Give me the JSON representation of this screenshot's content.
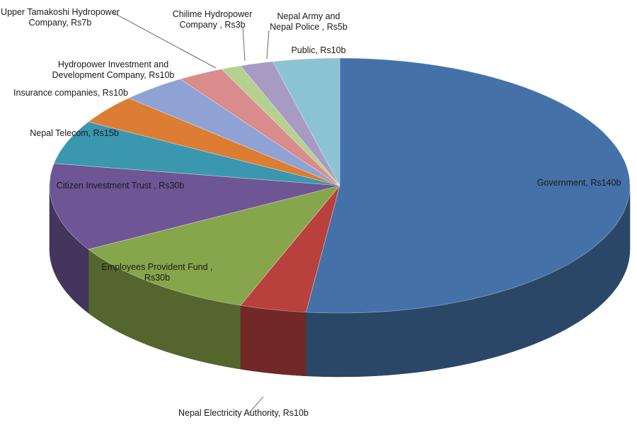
{
  "chart_data": {
    "type": "pie",
    "slices": [
      {
        "label": "Government, Rs140b",
        "value": 140,
        "color": "#4472a8"
      },
      {
        "label": "Nepal Electricity Authority, Rs10b",
        "value": 10,
        "color": "#b8403d"
      },
      {
        "label": "Employees Provident Fund , Rs30b",
        "value": 30,
        "color": "#87a54a"
      },
      {
        "label": "Citizen Investment Trust , Rs30b",
        "value": 30,
        "color": "#6d5596"
      },
      {
        "label": "Nepal Telecom, Rs15b",
        "value": 15,
        "color": "#3b97b0"
      },
      {
        "label": "Insurance companies, Rs10b",
        "value": 10,
        "color": "#dc7d33"
      },
      {
        "label": "Hydropower Investment and Development Company, Rs10b",
        "value": 10,
        "color": "#8ea3d4"
      },
      {
        "label": "Upper Tamakoshi Hydropower Company, Rs7b",
        "value": 7,
        "color": "#d98c8b"
      },
      {
        "label": "Chilime Hydropower Company , Rs3b",
        "value": 3,
        "color": "#b6d08f"
      },
      {
        "label": "Nepal Army and Nepal Police , Rs5b",
        "value": 5,
        "color": "#a79bc4"
      },
      {
        "label": "Public, Rs10b",
        "value": 10,
        "color": "#8cc3d3"
      }
    ],
    "label_lines": [
      [
        "Government, Rs140b"
      ],
      [
        "Nepal Electricity Authority, Rs10b"
      ],
      [
        "Employees Provident Fund ,",
        "Rs30b"
      ],
      [
        "Citizen Investment Trust , Rs30b"
      ],
      [
        "Nepal Telecom, Rs15b"
      ],
      [
        "Insurance companies, Rs10b"
      ],
      [
        "Hydropower Investment and",
        "Development Company, Rs10b"
      ],
      [
        "Upper Tamakoshi Hydropower",
        "Company, Rs7b"
      ],
      [
        "Chilime Hydropower",
        "Company , Rs3b"
      ],
      [
        "Nepal Army and",
        "Nepal Police , Rs5b"
      ],
      [
        "Public, Rs10b"
      ]
    ]
  }
}
